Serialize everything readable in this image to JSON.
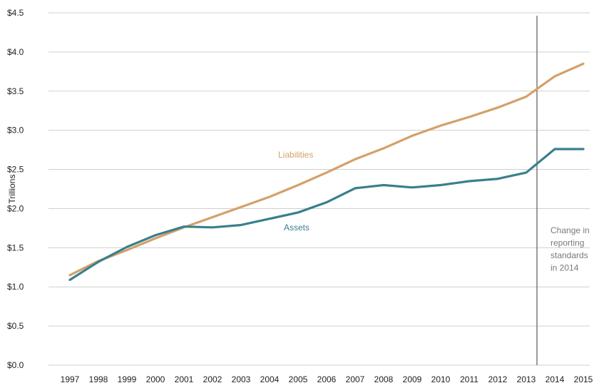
{
  "chart_data": {
    "type": "line",
    "title": "",
    "xlabel": "",
    "ylabel": "Trillions",
    "x": [
      "1997",
      "1998",
      "1999",
      "2000",
      "2001",
      "2002",
      "2003",
      "2004",
      "2005",
      "2006",
      "2007",
      "2008",
      "2009",
      "2010",
      "2011",
      "2012",
      "2013",
      "2014",
      "2015"
    ],
    "ylim": [
      0,
      4.5
    ],
    "yticks": [
      0,
      0.5,
      1.0,
      1.5,
      2.0,
      2.5,
      3.0,
      3.5,
      4.0,
      4.5
    ],
    "ytick_labels": [
      "$0.0",
      "$0.5",
      "$1.0",
      "$1.5",
      "$2.0",
      "$2.5",
      "$3.0",
      "$3.5",
      "$4.0",
      "$4.5"
    ],
    "grid": "horizontal",
    "series": [
      {
        "name": "Liabilities",
        "color": "#d4a06a",
        "values": [
          1.15,
          1.33,
          1.47,
          1.62,
          1.76,
          1.89,
          2.02,
          2.15,
          2.3,
          2.46,
          2.63,
          2.77,
          2.93,
          3.06,
          3.17,
          3.29,
          3.43,
          3.69,
          3.85
        ]
      },
      {
        "name": "Assets",
        "color": "#3a7f8d",
        "values": [
          1.09,
          1.32,
          1.51,
          1.66,
          1.77,
          1.76,
          1.79,
          1.87,
          1.95,
          2.08,
          2.26,
          2.3,
          2.27,
          2.3,
          2.35,
          2.38,
          2.46,
          2.76,
          2.76
        ]
      }
    ],
    "annotations": [
      {
        "type": "vertical-line",
        "at_x": "between 2013 and 2014",
        "text_lines": [
          "Change in",
          "reporting",
          "standards",
          "in 2014"
        ]
      }
    ]
  }
}
